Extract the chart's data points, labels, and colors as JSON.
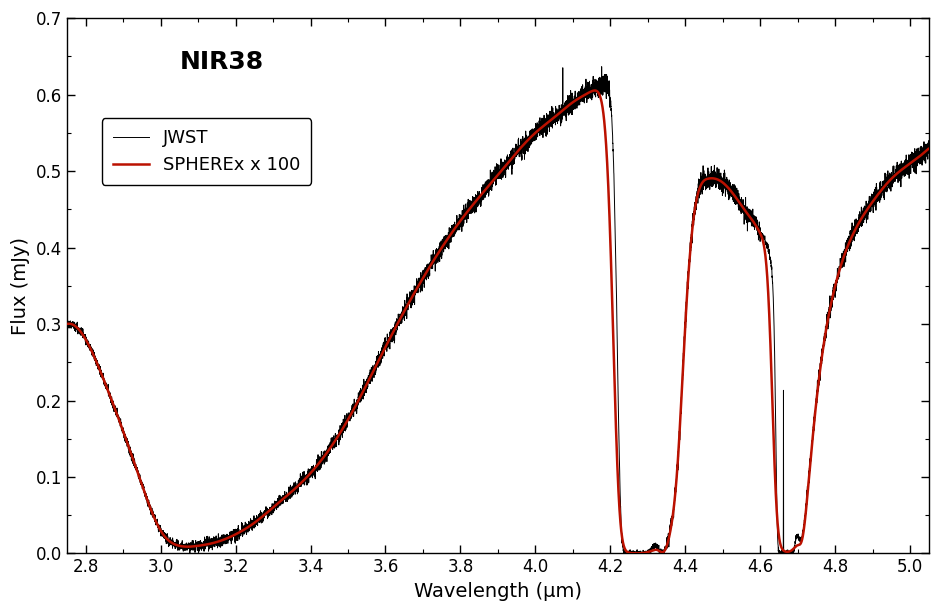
{
  "title": "NIR38",
  "xlabel": "Wavelength (μm)",
  "ylabel": "Flux (mJy)",
  "xlim": [
    2.75,
    5.05
  ],
  "ylim": [
    0.0,
    0.7
  ],
  "xticks": [
    2.8,
    3.0,
    3.2,
    3.4,
    3.6,
    3.8,
    4.0,
    4.2,
    4.4,
    4.6,
    4.8,
    5.0
  ],
  "yticks": [
    0.0,
    0.1,
    0.2,
    0.3,
    0.4,
    0.5,
    0.6,
    0.7
  ],
  "jwst_color": "#000000",
  "spherex_color": "#bb1100",
  "legend_labels": [
    "JWST",
    "SPHEREx x 100"
  ],
  "jwst_lw": 0.7,
  "spherex_lw": 1.8,
  "figsize": [
    9.4,
    6.12
  ],
  "dpi": 100,
  "background_color": "#ffffff",
  "title_fontsize": 18,
  "label_fontsize": 14,
  "tick_fontsize": 12,
  "legend_fontsize": 13
}
